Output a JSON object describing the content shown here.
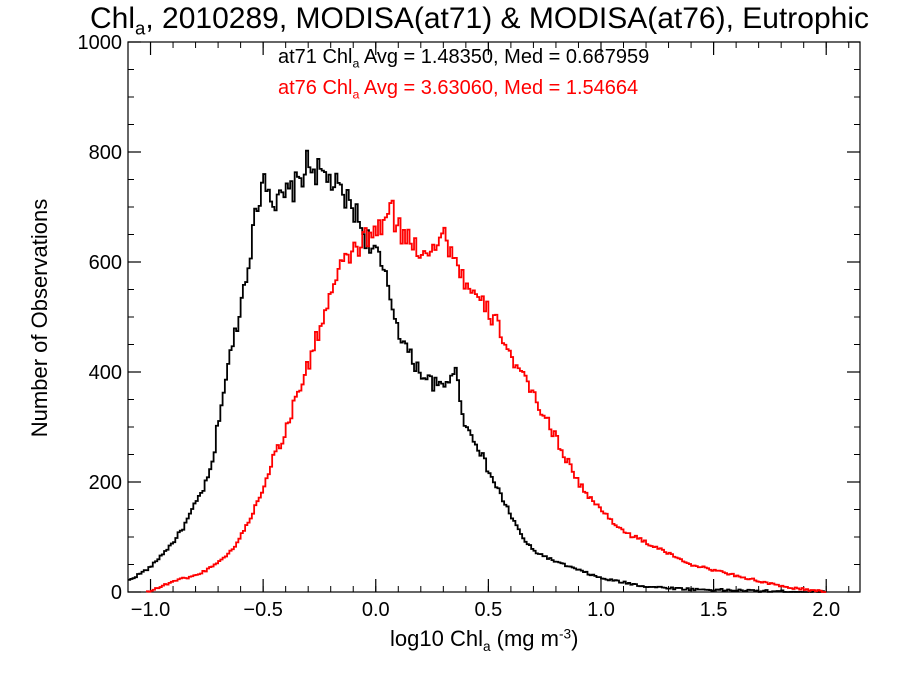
{
  "chart_data": {
    "type": "histogram",
    "title": {
      "pre": "Chl",
      "sub": "a",
      "post": ", 2010289, MODISA(at71) & MODISA(at76), Eutrophic"
    },
    "xlabel": {
      "pre": "log10 Chl",
      "sub": "a",
      "mid": " (mg m",
      "sup": "-3",
      "post": ")"
    },
    "ylabel": "Number of Observations",
    "xlim": [
      -1.1,
      2.15
    ],
    "ylim": [
      0,
      1000
    ],
    "xticks": [
      -1.0,
      -0.5,
      0.0,
      0.5,
      1.0,
      1.5,
      2.0
    ],
    "xtick_labels": [
      "−1.0",
      "−0.5",
      "0.0",
      "0.5",
      "1.0",
      "1.5",
      "2.0"
    ],
    "yticks": [
      0,
      200,
      400,
      600,
      800,
      1000
    ],
    "ytick_labels": [
      "0",
      "200",
      "400",
      "600",
      "800",
      "1000"
    ],
    "x_minor_step": 0.1,
    "y_minor_step": 50,
    "grid": false,
    "annotations": [
      {
        "pre": "at71 Chl",
        "sub": "a",
        "post": " Avg = 1.48350, Med = 0.667959",
        "color": "#000000"
      },
      {
        "pre": "at76 Chl",
        "sub": "a",
        "post": " Avg = 3.63060, Med = 1.54664",
        "color": "#ff0000"
      }
    ],
    "series": [
      {
        "name": "at71",
        "color": "#000000",
        "points": [
          [
            -1.1,
            20
          ],
          [
            -1.0,
            45
          ],
          [
            -0.9,
            90
          ],
          [
            -0.85,
            120
          ],
          [
            -0.8,
            160
          ],
          [
            -0.75,
            200
          ],
          [
            -0.72,
            240
          ],
          [
            -0.7,
            310
          ],
          [
            -0.65,
            420
          ],
          [
            -0.6,
            520
          ],
          [
            -0.55,
            640
          ],
          [
            -0.5,
            760
          ],
          [
            -0.47,
            740
          ],
          [
            -0.45,
            700
          ],
          [
            -0.4,
            720
          ],
          [
            -0.35,
            740
          ],
          [
            -0.3,
            780
          ],
          [
            -0.25,
            760
          ],
          [
            -0.2,
            750
          ],
          [
            -0.15,
            720
          ],
          [
            -0.1,
            700
          ],
          [
            -0.05,
            650
          ],
          [
            0.0,
            620
          ],
          [
            0.05,
            560
          ],
          [
            0.1,
            480
          ],
          [
            0.15,
            430
          ],
          [
            0.2,
            400
          ],
          [
            0.25,
            380
          ],
          [
            0.3,
            370
          ],
          [
            0.35,
            410
          ],
          [
            0.4,
            300
          ],
          [
            0.45,
            270
          ],
          [
            0.5,
            220
          ],
          [
            0.55,
            180
          ],
          [
            0.6,
            140
          ],
          [
            0.65,
            100
          ],
          [
            0.7,
            75
          ],
          [
            0.8,
            55
          ],
          [
            0.9,
            40
          ],
          [
            1.0,
            25
          ],
          [
            1.2,
            10
          ],
          [
            1.4,
            5
          ],
          [
            1.6,
            3
          ],
          [
            1.8,
            1
          ],
          [
            2.0,
            0
          ]
        ]
      },
      {
        "name": "at76",
        "color": "#ff0000",
        "points": [
          [
            -1.02,
            0
          ],
          [
            -0.95,
            10
          ],
          [
            -0.9,
            20
          ],
          [
            -0.8,
            30
          ],
          [
            -0.75,
            40
          ],
          [
            -0.7,
            55
          ],
          [
            -0.65,
            70
          ],
          [
            -0.6,
            100
          ],
          [
            -0.55,
            140
          ],
          [
            -0.5,
            190
          ],
          [
            -0.45,
            250
          ],
          [
            -0.4,
            290
          ],
          [
            -0.35,
            360
          ],
          [
            -0.3,
            410
          ],
          [
            -0.25,
            480
          ],
          [
            -0.2,
            540
          ],
          [
            -0.15,
            590
          ],
          [
            -0.1,
            620
          ],
          [
            -0.05,
            640
          ],
          [
            0.0,
            650
          ],
          [
            0.03,
            670
          ],
          [
            0.07,
            695
          ],
          [
            0.1,
            660
          ],
          [
            0.15,
            640
          ],
          [
            0.2,
            620
          ],
          [
            0.25,
            630
          ],
          [
            0.3,
            650
          ],
          [
            0.35,
            610
          ],
          [
            0.4,
            560
          ],
          [
            0.45,
            530
          ],
          [
            0.5,
            510
          ],
          [
            0.55,
            480
          ],
          [
            0.6,
            430
          ],
          [
            0.65,
            390
          ],
          [
            0.7,
            360
          ],
          [
            0.75,
            320
          ],
          [
            0.8,
            280
          ],
          [
            0.85,
            240
          ],
          [
            0.9,
            200
          ],
          [
            0.95,
            170
          ],
          [
            1.0,
            150
          ],
          [
            1.05,
            130
          ],
          [
            1.1,
            110
          ],
          [
            1.2,
            90
          ],
          [
            1.3,
            70
          ],
          [
            1.4,
            50
          ],
          [
            1.5,
            40
          ],
          [
            1.6,
            30
          ],
          [
            1.7,
            20
          ],
          [
            1.8,
            10
          ],
          [
            1.9,
            5
          ],
          [
            2.0,
            0
          ]
        ]
      }
    ]
  }
}
